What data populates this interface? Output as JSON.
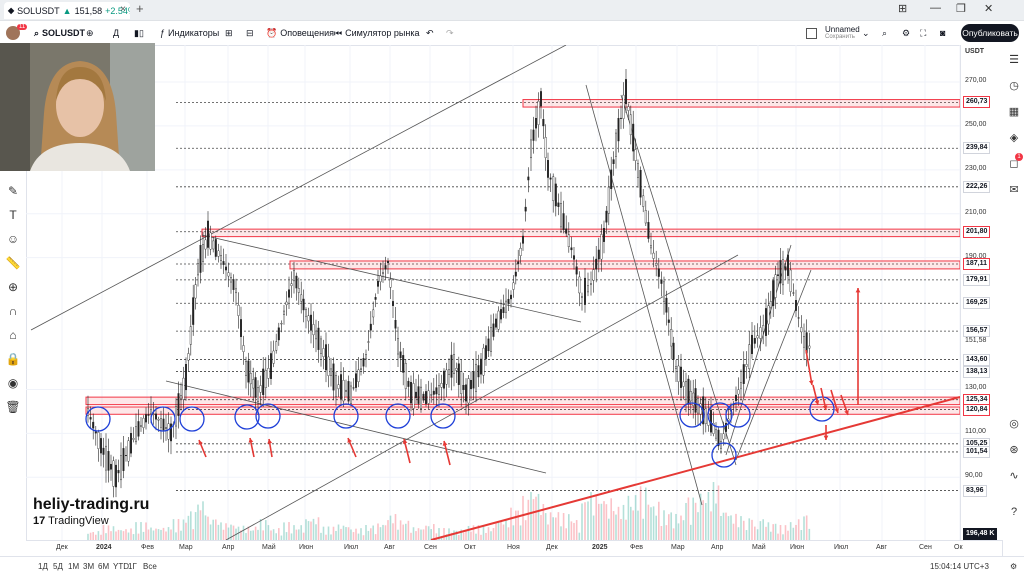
{
  "browser": {
    "tab_symbol": "SOLUSDT",
    "tab_price": "151,58",
    "tab_change": "+2.54%",
    "tab_close": "×",
    "new_tab": "+"
  },
  "toolbar": {
    "avatar_badge": "11",
    "symbol": "SOLUSDT",
    "interval": "Д",
    "indicators": "Индикаторы",
    "alerts": "Оповещения",
    "replay": "Симулятор рынка",
    "layout_name": "Unnamed",
    "layout_status": "Сохранить",
    "publish": "Опубликовать"
  },
  "price_axis": {
    "currency": "USDT",
    "labels": [
      "270,00",
      "250,00",
      "230,00",
      "210,00",
      "190,00",
      "130,00",
      "110,00",
      "90,00"
    ],
    "levels": [
      "260,73",
      "239,84",
      "222,26",
      "201,80",
      "187,11",
      "179,91",
      "169,25",
      "156,57",
      "143,60",
      "138,13",
      "125,34",
      "120,84",
      "105,25",
      "101,54",
      "83,96"
    ],
    "current_price": "151,58",
    "volume_label": "196,48 K"
  },
  "time_axis": {
    "labels": [
      "Дек",
      "2024",
      "Фев",
      "Мар",
      "Апр",
      "Май",
      "Июн",
      "Июл",
      "Авг",
      "Сен",
      "Окт",
      "Ноя",
      "Дек",
      "2025",
      "Фев",
      "Мар",
      "Апр",
      "Май",
      "Июн",
      "Июл",
      "Авг",
      "Сен",
      "Ок"
    ]
  },
  "bottom_bar": {
    "ranges": [
      "1Д",
      "5Д",
      "1М",
      "3М",
      "6М",
      "YTD",
      "1Г",
      "Все"
    ],
    "clock": "15:04:14 UTC+3"
  },
  "right_badge": "1",
  "watermark": {
    "site": "heliy-trading.ru",
    "brand": "TradingView"
  }
}
